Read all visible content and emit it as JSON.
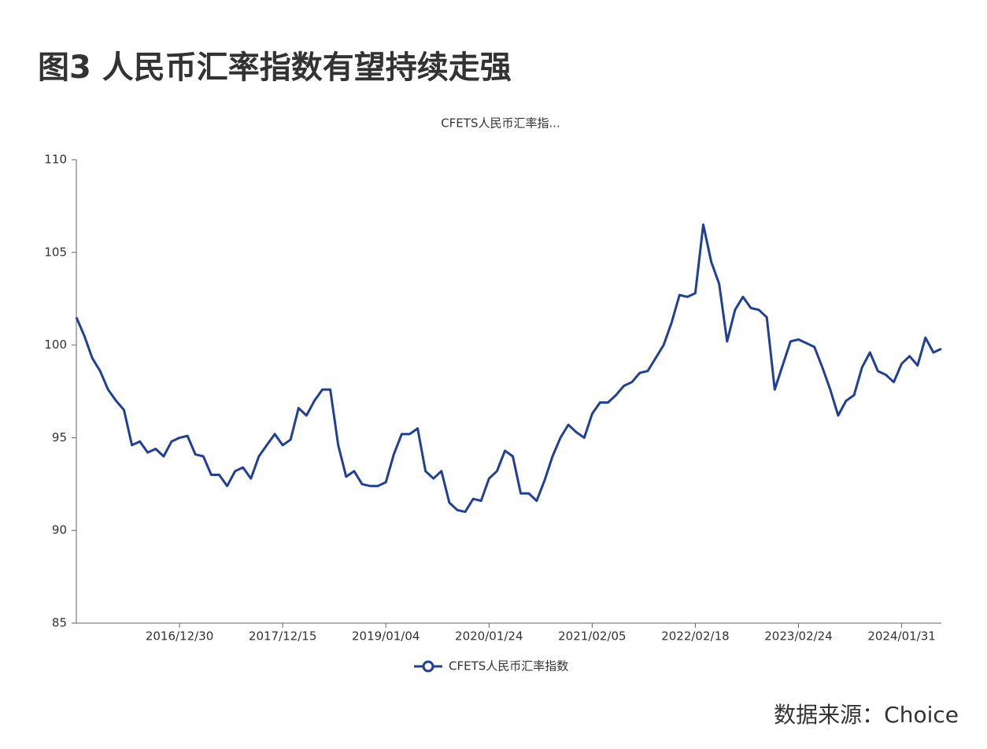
{
  "chart_data": {
    "type": "line",
    "title": "图3  人民币汇率指数有望持续走强",
    "subtitle": "CFETS人民币汇率指...",
    "source": "数据来源：Choice",
    "categories": [
      null,
      null,
      null,
      null,
      null,
      null,
      null,
      null,
      null,
      null,
      null,
      null,
      null,
      "2016/12/30",
      null,
      null,
      null,
      null,
      null,
      null,
      null,
      null,
      null,
      null,
      null,
      null,
      "2017/12/15",
      null,
      null,
      null,
      null,
      null,
      null,
      null,
      null,
      null,
      null,
      null,
      null,
      "2019/01/04",
      null,
      null,
      null,
      null,
      null,
      null,
      null,
      null,
      null,
      null,
      null,
      null,
      "2020/01/24",
      null,
      null,
      null,
      null,
      null,
      null,
      null,
      null,
      null,
      null,
      null,
      null,
      "2021/02/05",
      null,
      null,
      null,
      null,
      null,
      null,
      null,
      null,
      null,
      null,
      null,
      null,
      "2022/02/18",
      null,
      null,
      null,
      null,
      null,
      null,
      null,
      null,
      null,
      null,
      null,
      null,
      "2023/02/24",
      null,
      null,
      null,
      null,
      null,
      null,
      null,
      null,
      null,
      null,
      null,
      null,
      "2024/01/31",
      null,
      null,
      null,
      null,
      null
    ],
    "series": [
      {
        "name": "CFETS人民币汇率指数",
        "color": "#1f3f99",
        "values": [
          101.5,
          100.5,
          99.3,
          98.6,
          97.6,
          97.0,
          96.5,
          94.6,
          94.8,
          94.2,
          94.4,
          94.0,
          94.8,
          95.0,
          95.1,
          94.1,
          94.0,
          93.0,
          93.0,
          92.4,
          93.2,
          93.4,
          92.8,
          94.0,
          94.6,
          95.2,
          94.6,
          94.9,
          96.6,
          96.2,
          97.0,
          97.6,
          97.6,
          94.6,
          92.9,
          93.2,
          92.5,
          92.4,
          92.4,
          92.6,
          94.1,
          95.2,
          95.2,
          95.5,
          93.2,
          92.8,
          93.2,
          91.5,
          91.1,
          91.0,
          91.7,
          91.6,
          92.8,
          93.2,
          94.3,
          94.0,
          92.0,
          92.0,
          91.6,
          92.7,
          94.0,
          95.0,
          95.7,
          95.3,
          95.0,
          96.3,
          96.9,
          96.9,
          97.3,
          97.8,
          98.0,
          98.5,
          98.6,
          99.3,
          100.0,
          101.2,
          102.7,
          102.6,
          102.8,
          106.5,
          104.5,
          103.3,
          100.2,
          101.9,
          102.6,
          102.0,
          101.9,
          101.5,
          97.6,
          98.9,
          100.2,
          100.3,
          100.1,
          99.9,
          98.8,
          97.6,
          96.2,
          97.0,
          97.3,
          98.8,
          99.6,
          98.6,
          98.4,
          98.0,
          99.0,
          99.4,
          98.9,
          100.4,
          99.6,
          99.8
        ]
      }
    ],
    "ylim": [
      85,
      110
    ],
    "yticks": [
      85,
      90,
      95,
      100,
      105,
      110
    ],
    "grid": false
  }
}
